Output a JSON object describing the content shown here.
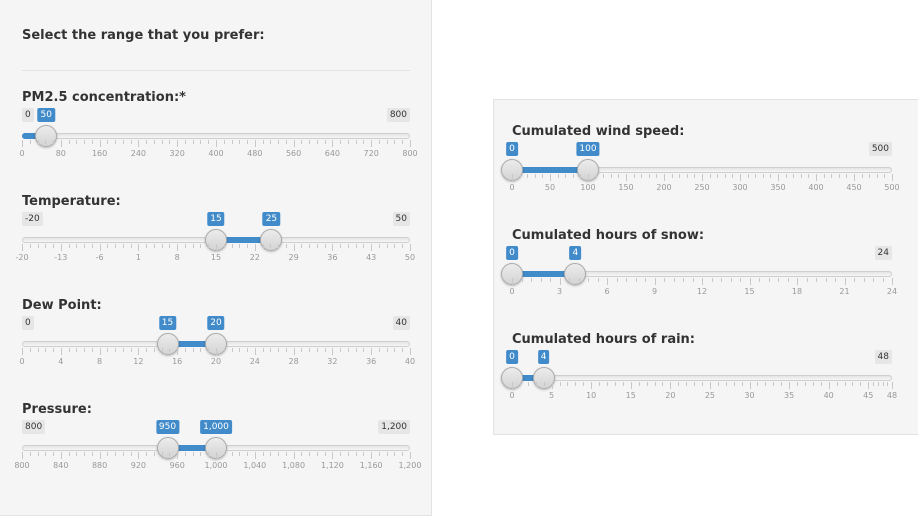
{
  "left_panel": {
    "title": "Select the range that you prefer:",
    "sliders": [
      {
        "label": "PM2.5 concentration:*",
        "min": 0,
        "max": 800,
        "min_label": "0",
        "max_label": "800",
        "from": 0,
        "to": 50,
        "from_label": "",
        "to_label": "50",
        "single": true,
        "ticks": [
          "0",
          "80",
          "160",
          "240",
          "320",
          "400",
          "480",
          "560",
          "640",
          "720",
          "800"
        ]
      },
      {
        "label": "Temperature:",
        "min": -20,
        "max": 50,
        "min_label": "-20",
        "max_label": "50",
        "from": 15,
        "to": 25,
        "from_label": "15",
        "to_label": "25",
        "single": false,
        "ticks": [
          "-20",
          "-13",
          "-6",
          "1",
          "8",
          "15",
          "22",
          "29",
          "36",
          "43",
          "50"
        ]
      },
      {
        "label": "Dew Point:",
        "min": 0,
        "max": 40,
        "min_label": "0",
        "max_label": "40",
        "from": 15,
        "to": 20,
        "from_label": "15",
        "to_label": "20",
        "single": false,
        "ticks": [
          "0",
          "4",
          "8",
          "12",
          "16",
          "20",
          "24",
          "28",
          "32",
          "36",
          "40"
        ]
      },
      {
        "label": "Pressure:",
        "min": 800,
        "max": 1200,
        "min_label": "800",
        "max_label": "1,200",
        "from": 950,
        "to": 1000,
        "from_label": "950",
        "to_label": "1,000",
        "single": false,
        "ticks": [
          "800",
          "840",
          "880",
          "920",
          "960",
          "1,000",
          "1,040",
          "1,080",
          "1,120",
          "1,160",
          "1,200"
        ]
      }
    ]
  },
  "right_panel": {
    "sliders": [
      {
        "label": "Cumulated wind speed:",
        "min": 0,
        "max": 500,
        "min_label": "",
        "max_label": "500",
        "from": 0,
        "to": 100,
        "from_label": "0",
        "to_label": "100",
        "single": false,
        "ticks": [
          "0",
          "50",
          "100",
          "150",
          "200",
          "250",
          "300",
          "350",
          "400",
          "450",
          "500"
        ]
      },
      {
        "label": "Cumulated hours of snow:",
        "min": 0,
        "max": 24,
        "min_label": "",
        "max_label": "24",
        "from": 0,
        "to": 4,
        "from_label": "0",
        "to_label": "4",
        "single": false,
        "ticks": [
          "0",
          "3",
          "6",
          "9",
          "12",
          "15",
          "18",
          "21",
          "24"
        ]
      },
      {
        "label": "Cumulated hours of rain:",
        "min": 0,
        "max": 48,
        "min_label": "",
        "max_label": "48",
        "from": 0,
        "to": 4,
        "from_label": "0",
        "to_label": "4",
        "single": false,
        "ticks": [
          "0",
          "5",
          "10",
          "15",
          "20",
          "25",
          "30",
          "35",
          "40",
          "45",
          "48"
        ],
        "tick_values": [
          0,
          5,
          10,
          15,
          20,
          25,
          30,
          35,
          40,
          45,
          48
        ]
      }
    ]
  },
  "colors": {
    "accent": "#428bca",
    "panel_bg": "#f5f5f5",
    "minmax_bg": "#e6e6e6",
    "tick_label": "#999999"
  }
}
